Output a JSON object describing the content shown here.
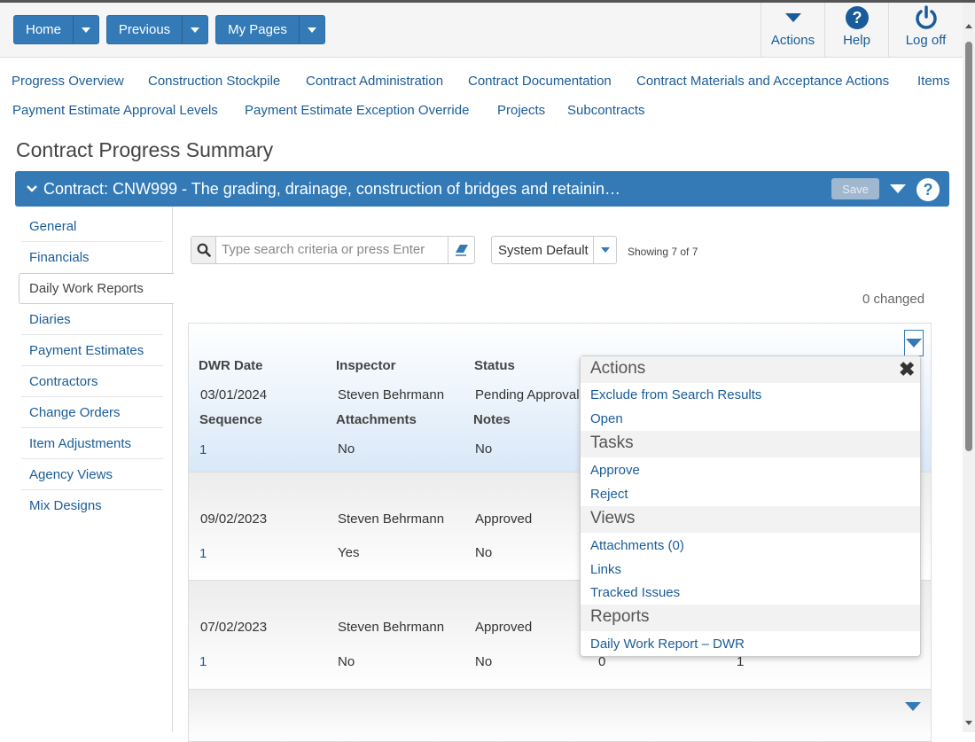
{
  "topbar": {
    "home_label": "Home",
    "previous_label": "Previous",
    "mypages_label": "My Pages",
    "actions_label": "Actions",
    "help_label": "Help",
    "logoff_label": "Log off"
  },
  "nav_links": [
    "Progress Overview",
    "Construction Stockpile",
    "Contract Administration",
    "Contract Documentation",
    "Contract Materials and Acceptance Actions",
    "Items",
    "Payment Estimate Approval Levels",
    "Payment Estimate Exception Override",
    "Projects",
    "Subcontracts"
  ],
  "page_title": "Contract Progress Summary",
  "contract_bar": {
    "title": "Contract: CNW999 - The grading, drainage, construction of bridges and retainin…",
    "save_label": "Save"
  },
  "sidebar": {
    "items": [
      "General",
      "Financials",
      "Daily Work Reports",
      "Diaries",
      "Payment Estimates",
      "Contractors",
      "Change Orders",
      "Item Adjustments",
      "Agency Views",
      "Mix Designs"
    ],
    "active": "Daily Work Reports"
  },
  "search": {
    "placeholder": "Type search criteria or press Enter",
    "value": ""
  },
  "view_select": {
    "selected": "System Default"
  },
  "showing_text": "Showing 7 of 7",
  "changed_text": "0 changed",
  "labels": {
    "dwr_date": "DWR Date",
    "inspector": "Inspector",
    "status": "Status",
    "sequence": "Sequence",
    "attachments": "Attachments",
    "notes": "Notes"
  },
  "records": [
    {
      "date": "03/01/2024",
      "inspector": "Steven Behrmann",
      "status": "Pending Approval",
      "sequence": "1",
      "attachments": "No",
      "notes": "No"
    },
    {
      "date": "09/02/2023",
      "inspector": "Steven Behrmann",
      "status": "Approved",
      "sequence": "1",
      "attachments": "Yes",
      "notes": "No"
    },
    {
      "date": "07/02/2023",
      "inspector": "Steven Behrmann",
      "status": "Approved",
      "sequence": "1",
      "attachments": "No",
      "notes": "No",
      "col4": "0",
      "col5": "1"
    }
  ],
  "actions_menu": {
    "sections": [
      {
        "header": "Actions",
        "items": [
          "Exclude from Search Results",
          "Open"
        ]
      },
      {
        "header": "Tasks",
        "items": [
          "Approve",
          "Reject"
        ]
      },
      {
        "header": "Views",
        "items": [
          "Attachments (0)",
          "Links",
          "Tracked Issues"
        ]
      },
      {
        "header": "Reports",
        "items": [
          "Daily Work Report – DWR"
        ]
      }
    ]
  },
  "colors": {
    "primary": "#337ab7",
    "link": "#1a5c99",
    "card_highlight": "#e3eefa"
  }
}
